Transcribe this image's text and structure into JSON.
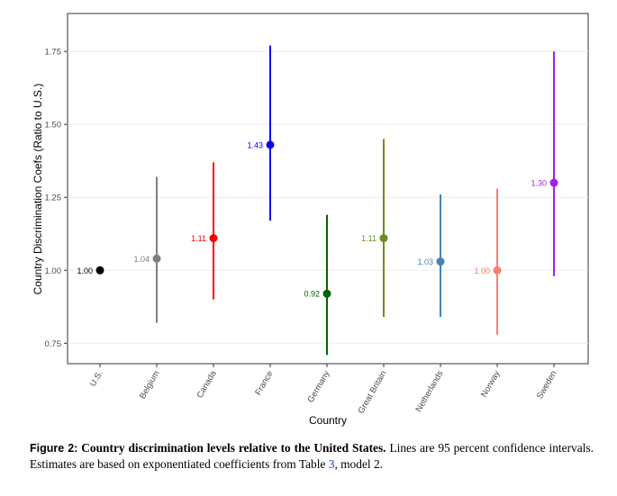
{
  "chart_data": {
    "type": "scatter",
    "xlabel": "Country",
    "ylabel": "Country Discrimination Coefs (Ratio to U.S.)",
    "categories": [
      "U.S.",
      "Belgium",
      "Canada",
      "France",
      "Germany",
      "Great Britain",
      "Netherlands",
      "Norway",
      "Sweden"
    ],
    "estimates": [
      1.0,
      1.04,
      1.11,
      1.43,
      0.92,
      1.11,
      1.03,
      1.0,
      1.3
    ],
    "point_labels": [
      "1.00",
      "1.04",
      "1.11",
      "1.43",
      "0.92",
      "1.11",
      "1.03",
      "1.00",
      "1.30"
    ],
    "ci_lower": [
      1.0,
      0.82,
      0.9,
      1.17,
      0.71,
      0.84,
      0.84,
      0.78,
      0.98
    ],
    "ci_upper": [
      1.0,
      1.32,
      1.37,
      1.77,
      1.19,
      1.45,
      1.26,
      1.28,
      1.75
    ],
    "colors": [
      "#000000",
      "#7f7f7f",
      "#ff0000",
      "#0000ff",
      "#006400",
      "#6b8e23",
      "#4682b4",
      "#fa8072",
      "#a020f0"
    ],
    "yticks": [
      0.75,
      1.0,
      1.25,
      1.5,
      1.75
    ],
    "ytick_labels": [
      "0.75",
      "1.00",
      "1.25",
      "1.50",
      "1.75"
    ],
    "ylim": [
      0.68,
      1.88
    ],
    "grid": true,
    "error_bars": "95 percent confidence intervals"
  },
  "caption": {
    "label": "Figure 2:",
    "title": "Country discrimination levels relative to the United States.",
    "text_before_ref": "Lines are 95 percent confidence intervals. Estimates are based on exponentiated coefficients from Table ",
    "ref": "3",
    "text_after_ref": ", model 2."
  }
}
